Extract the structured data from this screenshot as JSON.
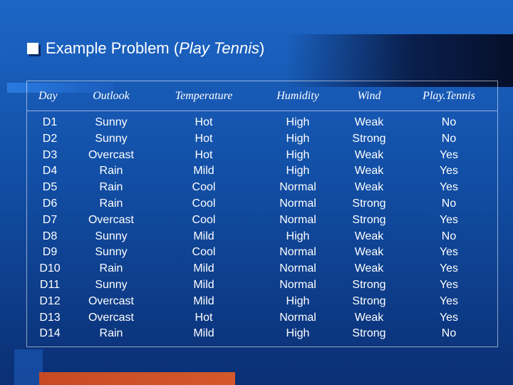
{
  "slide": {
    "title_prefix": "Example Problem (",
    "title_italic": "Play Tennis",
    "title_suffix": ")"
  },
  "table": {
    "headers": {
      "day": "Day",
      "outlook": "Outlook",
      "temperature": "Temperature",
      "humidity": "Humidity",
      "wind": "Wind",
      "play": "Play.Tennis"
    },
    "columns": {
      "day": [
        "D1",
        "D2",
        "D3",
        "D4",
        "D5",
        "D6",
        "D7",
        "D8",
        "D9",
        "D10",
        "D11",
        "D12",
        "D13",
        "D14"
      ],
      "outlook": [
        "Sunny",
        "Sunny",
        "Overcast",
        "Rain",
        "Rain",
        "Rain",
        "Overcast",
        "Sunny",
        "Sunny",
        "Rain",
        "Sunny",
        "Overcast",
        "Overcast",
        "Rain"
      ],
      "temperature": [
        "Hot",
        "Hot",
        "Hot",
        "Mild",
        "Cool",
        "Cool",
        "Cool",
        "Mild",
        "Cool",
        "Mild",
        "Mild",
        "Mild",
        "Hot",
        "Mild"
      ],
      "humidity": [
        "High",
        "High",
        "High",
        "High",
        "Normal",
        "Normal",
        "Normal",
        "High",
        "Normal",
        "Normal",
        "Normal",
        "High",
        "Normal",
        "High"
      ],
      "wind": [
        "Weak",
        "Strong",
        "Weak",
        "Weak",
        "Weak",
        "Strong",
        "Strong",
        "Weak",
        "Weak",
        "Weak",
        "Strong",
        "Strong",
        "Weak",
        "Strong"
      ],
      "play": [
        "No",
        "No",
        "Yes",
        "Yes",
        "Yes",
        "No",
        "Yes",
        "No",
        "Yes",
        "Yes",
        "Yes",
        "Yes",
        "Yes",
        "No"
      ]
    }
  },
  "colors": {
    "background": "#124fa6",
    "accent_bottom": "#c84a24",
    "text": "#ffffff"
  }
}
